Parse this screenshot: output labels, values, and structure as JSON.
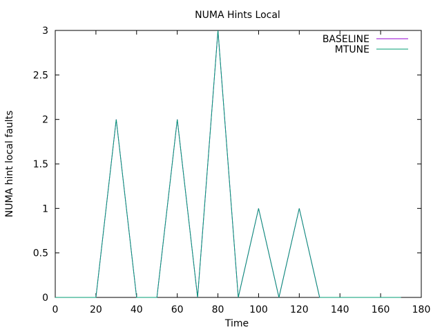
{
  "chart_data": {
    "type": "line",
    "title": "NUMA Hints Local",
    "xlabel": "Time",
    "ylabel": "NUMA hint local faults",
    "xlim": [
      0,
      180
    ],
    "ylim": [
      0,
      3
    ],
    "x_ticks": [
      "0",
      "20",
      "40",
      "60",
      "80",
      "100",
      "120",
      "140",
      "160",
      "180"
    ],
    "y_ticks": [
      "0",
      "0.5",
      "1",
      "1.5",
      "2",
      "2.5",
      "3"
    ],
    "grid": false,
    "legend_position": "top-right",
    "series": [
      {
        "name": "BASELINE",
        "color": "#9400d3",
        "x": [
          0,
          10,
          20,
          30,
          40,
          50,
          60,
          70,
          80,
          90,
          100,
          110,
          120,
          130,
          140,
          150,
          160,
          170
        ],
        "y": [
          0,
          0,
          0,
          2,
          0,
          0,
          2,
          0,
          3,
          0,
          1,
          0,
          1,
          0,
          0,
          0,
          0,
          0
        ]
      },
      {
        "name": "MTUNE",
        "color": "#009e73",
        "x": [
          0,
          10,
          20,
          30,
          40,
          50,
          60,
          70,
          80,
          90,
          100,
          110,
          120,
          130,
          140,
          150,
          160,
          170
        ],
        "y": [
          0,
          0,
          0,
          2,
          0,
          0,
          2,
          0,
          3,
          0,
          1,
          0,
          1,
          0,
          0,
          0,
          0,
          0
        ]
      }
    ]
  }
}
